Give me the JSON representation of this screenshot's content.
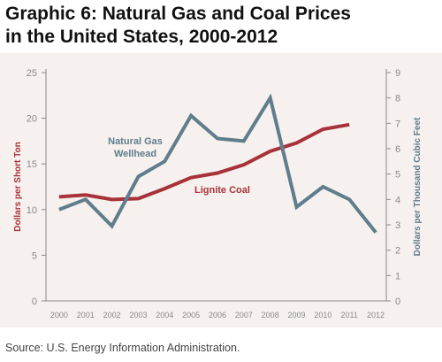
{
  "title_line1": "Graphic 6: Natural Gas and Coal Prices",
  "title_line2": "in the United States, 2000-2012",
  "source": "Source: U.S. Energy Information Administration.",
  "colors": {
    "coal": "#a8323a",
    "gas": "#5f7d8c",
    "background": "#f6f1ee",
    "axis": "#8a8a8a"
  },
  "chart_data": {
    "type": "line",
    "x": [
      "2000",
      "2001",
      "2002",
      "2003",
      "2004",
      "2005",
      "2006",
      "2007",
      "2008",
      "2009",
      "2010",
      "2011",
      "2012"
    ],
    "left_axis": {
      "label": "Dollars per Short Ton",
      "ylim": [
        0,
        25
      ],
      "ticks": [
        0,
        5,
        10,
        15,
        20,
        25
      ]
    },
    "right_axis": {
      "label": "Dollars per Thousand Cubic Feet",
      "ylim": [
        0,
        9
      ],
      "ticks": [
        0,
        1,
        2,
        3,
        4,
        5,
        6,
        7,
        8,
        9
      ]
    },
    "series": [
      {
        "name": "Lignite Coal",
        "axis": "left",
        "values": [
          11.4,
          11.6,
          11.1,
          11.2,
          12.3,
          13.5,
          14.0,
          14.9,
          16.4,
          17.3,
          18.8,
          19.3,
          null
        ]
      },
      {
        "name": "Natural Gas Wellhead",
        "label_lines": [
          "Natural Gas",
          "Wellhead"
        ],
        "axis": "right",
        "values": [
          3.6,
          4.0,
          2.95,
          4.9,
          5.5,
          7.3,
          6.4,
          6.3,
          8.0,
          3.7,
          4.5,
          4.0,
          2.7
        ]
      }
    ],
    "grid": false
  }
}
